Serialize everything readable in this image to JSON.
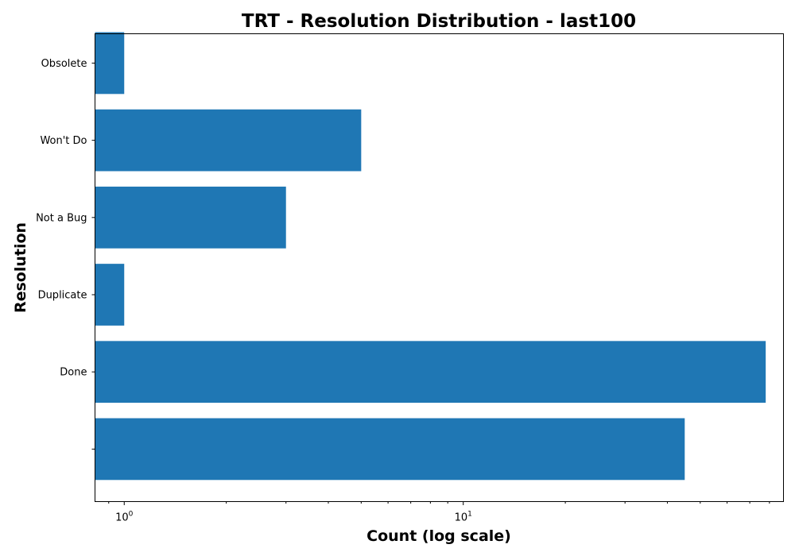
{
  "chart_data": {
    "type": "bar",
    "orientation": "horizontal",
    "title": "TRT - Resolution Distribution - last100",
    "xlabel": "Count (log scale)",
    "ylabel": "Resolution",
    "x_scale": "log",
    "xlim": [
      0.82,
      88
    ],
    "x_tick_labels": [
      {
        "value": 1,
        "base": "10",
        "exp": "0"
      },
      {
        "value": 10,
        "base": "10",
        "exp": "1"
      }
    ],
    "categories": [
      "",
      "Done",
      "Duplicate",
      "Not a Bug",
      "Won't Do",
      "Obsolete"
    ],
    "values": [
      45,
      78,
      1,
      3,
      5,
      1
    ],
    "bar_color": "#1f77b4",
    "grid": false,
    "legend": "none"
  }
}
